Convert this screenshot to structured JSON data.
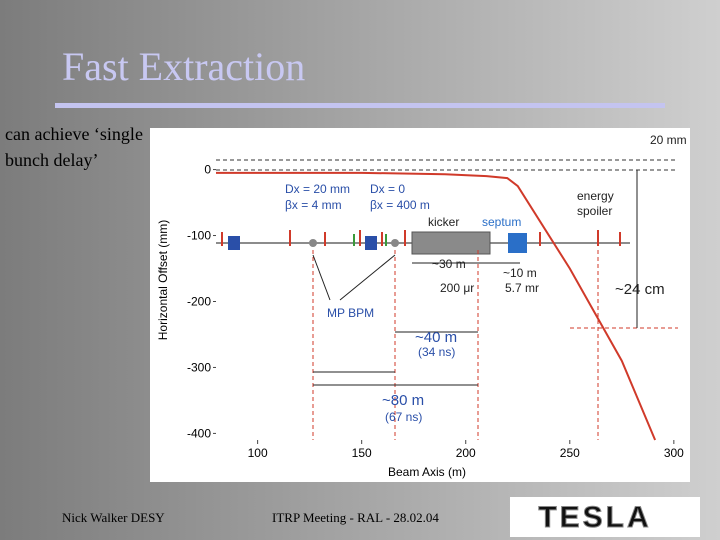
{
  "slide": {
    "title": "Fast Extraction",
    "body": [
      "can achieve ‘single",
      "bunch delay’"
    ],
    "footer_left": "Nick Walker DESY",
    "footer_center": "ITRP Meeting - RAL - 28.02.04",
    "logo": "TESLA"
  },
  "chart_data": {
    "type": "line",
    "x_label": "Beam Axis (m)",
    "y_label": "Horizontal Offset (mm)",
    "x": [
      80,
      150,
      190,
      210,
      220,
      225,
      250,
      275,
      291
    ],
    "series": [
      {
        "color": "#d03a2a",
        "values": [
          -5,
          -5,
          -7,
          -10,
          -13,
          -25,
          -150,
          -290,
          -410
        ]
      }
    ],
    "xlim": [
      80,
      302
    ],
    "ylim": [
      -410,
      60
    ],
    "xticks": [
      100,
      150,
      200,
      250,
      300
    ],
    "yticks": [
      0,
      -100,
      -200,
      -300,
      -400
    ],
    "annotations": [
      "20 mm",
      "Dx = 20 mm",
      "βx = 4 mm",
      "Dx = 0",
      "βx = 400 m",
      "kicker",
      "septum",
      "energy",
      "spoiler",
      "~30 m",
      "~10 m",
      "200 μr",
      "5.7 mr",
      "~24 cm",
      "MP BPM",
      "~40 m",
      "(34 ns)",
      "~80 m",
      "(67 ns)"
    ]
  }
}
